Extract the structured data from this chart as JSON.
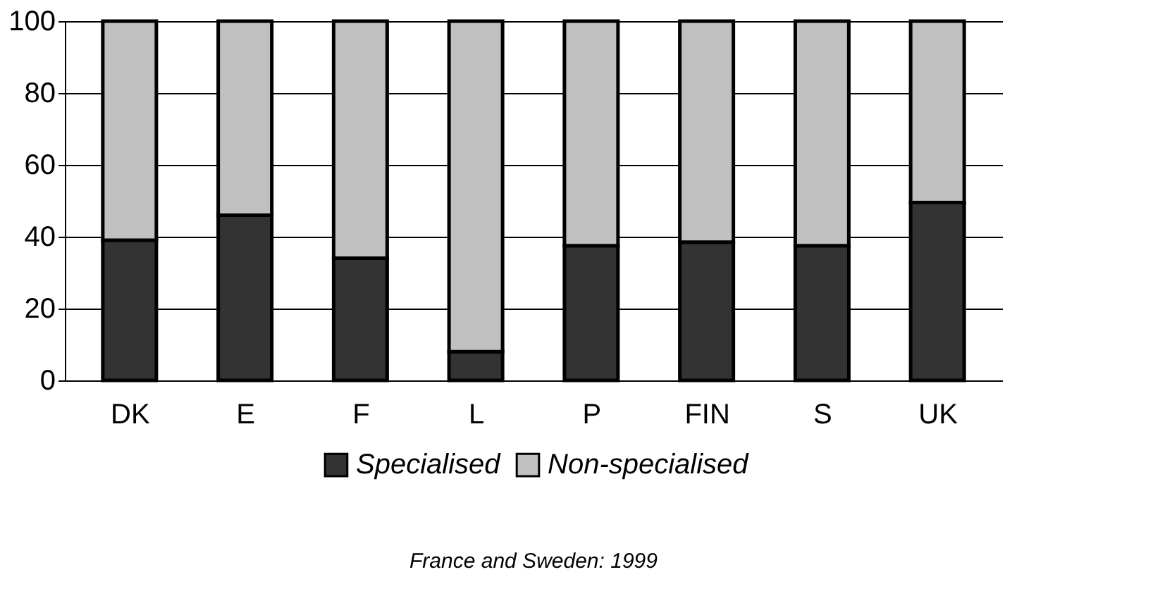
{
  "chart_data": {
    "type": "bar",
    "stacked": true,
    "categories": [
      "DK",
      "E",
      "F",
      "L",
      "P",
      "FIN",
      "S",
      "UK"
    ],
    "series": [
      {
        "name": "Specialised",
        "color": "#333333",
        "values": [
          39,
          46,
          34,
          8,
          37.5,
          38.5,
          37.5,
          49.5
        ]
      },
      {
        "name": "Non-specialised",
        "color": "#c0c0c0",
        "values": [
          61,
          54,
          66,
          92,
          62.5,
          61.5,
          62.5,
          50.5
        ]
      }
    ],
    "ylim": [
      0,
      100
    ],
    "yticks": [
      0,
      20,
      40,
      60,
      80,
      100
    ],
    "grid": "y",
    "legend": "bottom",
    "annotations": [
      "France and Sweden: 1999"
    ]
  }
}
